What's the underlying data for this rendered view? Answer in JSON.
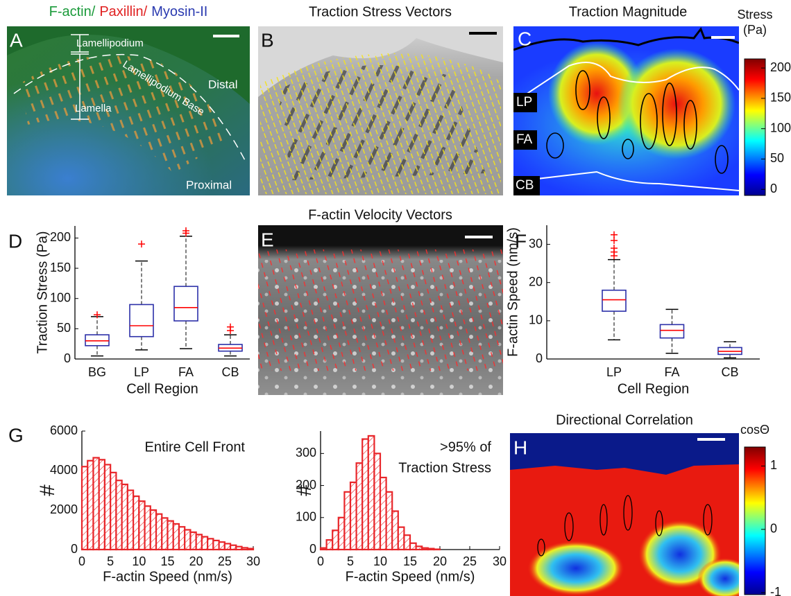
{
  "panels": [
    {
      "label": "A",
      "title": [
        "F-actin/",
        "Paxillin/",
        "Myosin-II"
      ],
      "annotations": [
        "Lamellipodium",
        "Lamella",
        "Lamellipodium Base",
        "Distal",
        "Proximal"
      ]
    },
    {
      "label": "B",
      "title": "Traction Stress Vectors"
    },
    {
      "label": "C",
      "title": "Traction Magnitude",
      "regions": [
        "LP",
        "FA",
        "CB"
      ],
      "colorbar": {
        "label": [
          "Stress",
          "(Pa)"
        ],
        "lim": [
          -10,
          215
        ],
        "ticks": [
          0,
          50,
          100,
          150,
          200
        ]
      }
    },
    {
      "label": "E",
      "title": "F-actin Velocity Vectors"
    },
    {
      "label": "H",
      "title": "Directional Correlation",
      "colorbar": {
        "label": [
          "cosΘ"
        ],
        "lim": [
          -1.03,
          1.3
        ],
        "ticks": [
          1,
          0,
          -1
        ]
      }
    }
  ],
  "chart_data": [
    {
      "type": "box",
      "panel_label": "D",
      "ylabel": "Traction Stress (Pa)",
      "xlabel": "Cell Region",
      "categories": [
        "BG",
        "LP",
        "FA",
        "CB"
      ],
      "ylim": [
        0,
        220
      ],
      "yticks": [
        0,
        50,
        100,
        150,
        200
      ],
      "box_color": "#2b2fa8",
      "median_color": "#ff0000",
      "outlier_color": "#ff0000",
      "boxes": [
        {
          "low": 5,
          "q1": 22,
          "median": 30,
          "q3": 40,
          "high": 70,
          "outliers": [
            73
          ]
        },
        {
          "low": 15,
          "q1": 37,
          "median": 55,
          "q3": 90,
          "high": 162,
          "outliers": [
            190
          ]
        },
        {
          "low": 17,
          "q1": 63,
          "median": 85,
          "q3": 120,
          "high": 203,
          "outliers": [
            208,
            212
          ]
        },
        {
          "low": 5,
          "q1": 13,
          "median": 18,
          "q3": 24,
          "high": 40,
          "outliers": [
            47,
            53
          ]
        }
      ]
    },
    {
      "type": "box",
      "panel_label": "F",
      "ylabel": "F-actin Speed (nm/s)",
      "xlabel": "Cell Region",
      "categories": [
        "LP",
        "FA",
        "CB"
      ],
      "ylim": [
        0,
        35
      ],
      "yticks": [
        0,
        10,
        20,
        30
      ],
      "box_color": "#2b2fa8",
      "median_color": "#ff0000",
      "outlier_color": "#ff0000",
      "boxes": [
        {
          "low": 5,
          "q1": 12.5,
          "median": 15.5,
          "q3": 18,
          "high": 26,
          "outliers": [
            27,
            28,
            29,
            31,
            32.5
          ]
        },
        {
          "low": 1.5,
          "q1": 5.5,
          "median": 7.5,
          "q3": 9,
          "high": 13,
          "outliers": []
        },
        {
          "low": 0.3,
          "q1": 1.2,
          "median": 2,
          "q3": 3,
          "high": 4.5,
          "outliers": []
        }
      ]
    },
    {
      "type": "histogram",
      "panel_label": "G",
      "ylabel": "#",
      "xlabel": "F-actin Speed (nm/s)",
      "annotation": [
        "Entire Cell Front"
      ],
      "color": "#e8262a",
      "xlim": [
        0,
        30
      ],
      "xticks": [
        0,
        5,
        10,
        15,
        20,
        25,
        30
      ],
      "ylim": [
        0,
        6000
      ],
      "yticks": [
        0,
        2000,
        4000,
        6000
      ],
      "bins": [
        0,
        1,
        2,
        3,
        4,
        5,
        6,
        7,
        8,
        9,
        10,
        11,
        12,
        13,
        14,
        15,
        16,
        17,
        18,
        19,
        20,
        21,
        22,
        23,
        24,
        25,
        26,
        27,
        28,
        29,
        30
      ],
      "counts": [
        4200,
        4500,
        4650,
        4550,
        4300,
        3900,
        3500,
        3300,
        3000,
        2700,
        2450,
        2200,
        2000,
        1800,
        1600,
        1450,
        1300,
        1150,
        1000,
        880,
        760,
        650,
        550,
        460,
        380,
        300,
        220,
        150,
        90,
        50
      ]
    },
    {
      "type": "histogram",
      "ylabel": "#",
      "xlabel": "F-actin Speed (nm/s)",
      "annotation": [
        ">95% of",
        "Traction Stress"
      ],
      "color": "#e8262a",
      "xlim": [
        0,
        30
      ],
      "xticks": [
        0,
        5,
        10,
        15,
        20,
        25,
        30
      ],
      "ylim": [
        0,
        370
      ],
      "yticks": [
        0,
        100,
        200,
        300
      ],
      "bins": [
        0,
        1,
        2,
        3,
        4,
        5,
        6,
        7,
        8,
        9,
        10,
        11,
        12,
        13,
        14,
        15,
        16,
        17,
        18,
        19,
        20,
        21,
        22,
        23,
        24,
        25,
        26,
        27,
        28,
        29,
        30
      ],
      "counts": [
        5,
        30,
        60,
        100,
        180,
        210,
        270,
        345,
        355,
        300,
        225,
        180,
        120,
        70,
        45,
        20,
        10,
        5,
        3,
        1,
        0,
        0,
        0,
        0,
        0,
        0,
        0,
        0,
        0,
        0
      ]
    }
  ]
}
